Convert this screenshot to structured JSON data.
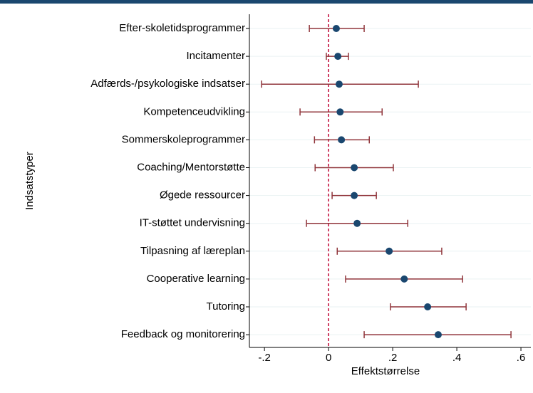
{
  "chart_data": {
    "type": "forest",
    "xlabel": "Effektstørrelse",
    "ylabel": "Indsatstyper",
    "categories": [
      "Efter-skoletidsprogrammer",
      "Incitamenter",
      "Adfærds-/psykologiske indsatser",
      "Kompetenceudvikling",
      "Sommerskoleprogrammer",
      "Coaching/Mentorstøtte",
      "Øgede ressourcer",
      "IT-støttet undervisning",
      "Tilpasning af læreplan",
      "Cooperative learning",
      "Tutoring",
      "Feedback og monitorering"
    ],
    "values": [
      0.024,
      0.029,
      0.033,
      0.036,
      0.04,
      0.08,
      0.08,
      0.089,
      0.189,
      0.236,
      0.309,
      0.342
    ],
    "lower": [
      -0.06,
      -0.007,
      -0.209,
      -0.089,
      -0.044,
      -0.042,
      0.011,
      -0.069,
      0.027,
      0.053,
      0.193,
      0.111
    ],
    "upper": [
      0.111,
      0.062,
      0.28,
      0.167,
      0.127,
      0.202,
      0.149,
      0.247,
      0.353,
      0.418,
      0.429,
      0.569
    ],
    "point_color": "#1a476f",
    "bar_color": "#90353b",
    "reference_line": {
      "value": 0,
      "color": "#c10534"
    },
    "xlim": [
      -0.247,
      0.631
    ],
    "xticks": [
      {
        "value": -0.2,
        "label": "-.2"
      },
      0,
      {
        "value": 0.2,
        "label": ".2"
      },
      {
        "value": 0.4,
        "label": ".4"
      },
      {
        "value": 0.6,
        "label": ".6"
      }
    ],
    "grid": true
  }
}
